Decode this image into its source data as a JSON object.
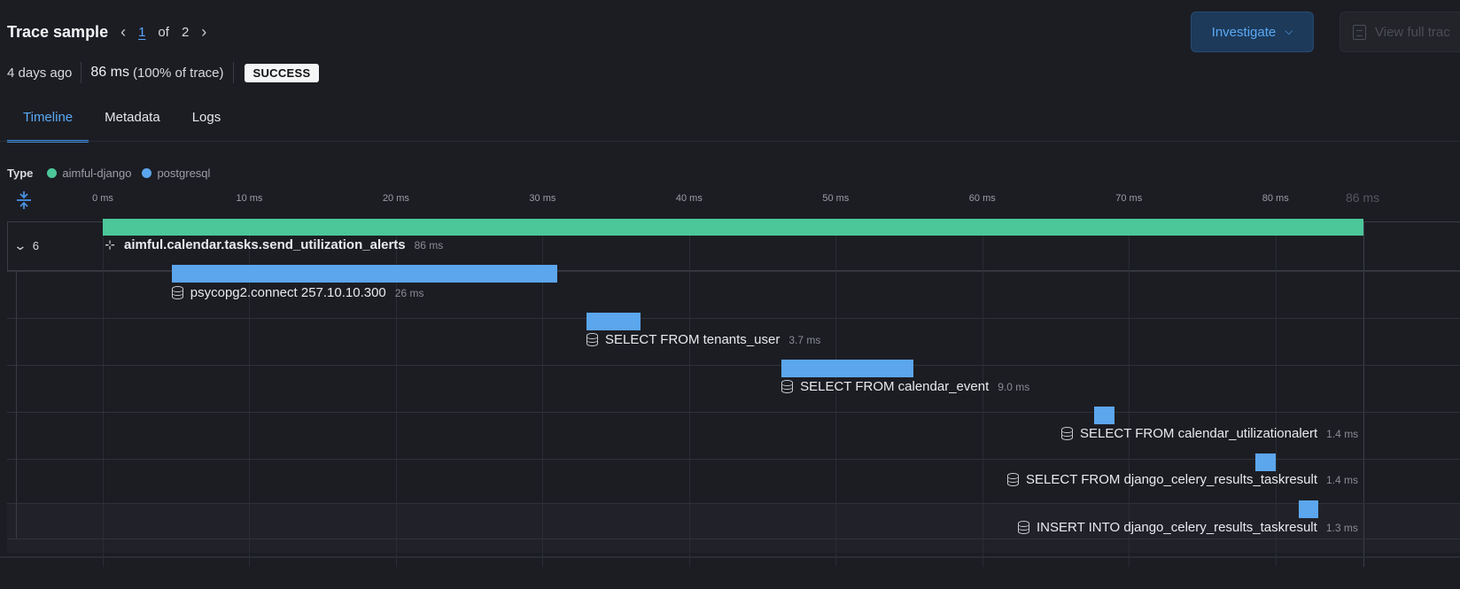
{
  "header": {
    "title": "Trace sample",
    "current_page": "1",
    "of_label": "of",
    "total_pages": "2",
    "prev_icon": "chevron-left-icon",
    "next_icon": "chevron-right-icon"
  },
  "actions": {
    "investigate_label": "Investigate",
    "view_full_label": "View full trac"
  },
  "meta": {
    "age": "4 days ago",
    "duration": "86 ms",
    "duration_pct": "(100% of trace)",
    "status": "SUCCESS"
  },
  "tabs": [
    {
      "label": "Timeline",
      "active": true
    },
    {
      "label": "Metadata",
      "active": false
    },
    {
      "label": "Logs",
      "active": false
    }
  ],
  "legend": {
    "label": "Type",
    "items": [
      {
        "name": "aimful-django",
        "color": "#4cc79a"
      },
      {
        "name": "postgresql",
        "color": "#5ca6ee"
      }
    ]
  },
  "axis": {
    "ticks": [
      "0 ms",
      "10 ms",
      "20 ms",
      "30 ms",
      "40 ms",
      "50 ms",
      "60 ms",
      "70 ms",
      "80 ms"
    ],
    "total_label": "86 ms",
    "total_ms": 86
  },
  "root": {
    "child_count": "6"
  },
  "spans": [
    {
      "name": "aimful.calendar.tasks.send_utilization_alerts",
      "duration": "86 ms",
      "start_ms": 0,
      "dur_ms": 86,
      "type": "aimful-django",
      "icon": "task-icon",
      "bold": true
    },
    {
      "name": "psycopg2.connect 257.10.10.300",
      "duration": "26 ms",
      "start_ms": 4.7,
      "dur_ms": 26.3,
      "type": "postgresql",
      "icon": "database-icon",
      "bold": false
    },
    {
      "name": "SELECT FROM tenants_user",
      "duration": "3.7 ms",
      "start_ms": 33,
      "dur_ms": 3.7,
      "type": "postgresql",
      "icon": "database-icon",
      "bold": false
    },
    {
      "name": "SELECT FROM calendar_event",
      "duration": "9.0 ms",
      "start_ms": 46.3,
      "dur_ms": 9.0,
      "type": "postgresql",
      "icon": "database-icon",
      "bold": false
    },
    {
      "name": "SELECT FROM calendar_utilizationalert",
      "duration": "1.4 ms",
      "start_ms": 67.6,
      "dur_ms": 1.4,
      "type": "postgresql",
      "icon": "database-icon",
      "bold": false
    },
    {
      "name": "SELECT FROM django_celery_results_taskresult",
      "duration": "1.4 ms",
      "start_ms": 78.6,
      "dur_ms": 1.4,
      "type": "postgresql",
      "icon": "database-icon",
      "bold": false
    },
    {
      "name": "INSERT INTO django_celery_results_taskresult",
      "duration": "1.3 ms",
      "start_ms": 81.6,
      "dur_ms": 1.3,
      "type": "postgresql",
      "icon": "database-icon",
      "bold": false
    }
  ]
}
